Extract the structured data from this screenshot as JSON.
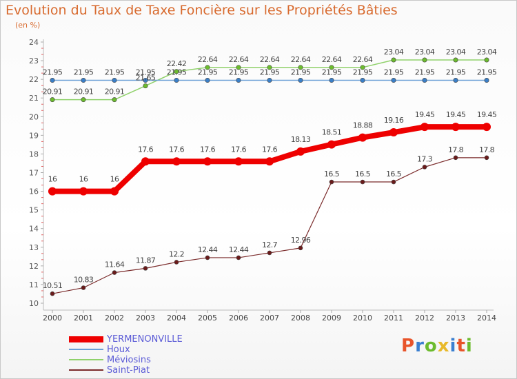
{
  "title": "Evolution du Taux de Taxe Foncière sur les Propriétés Bâties",
  "unit_label": "(en %)",
  "logo_text": "Proxiti",
  "logo_colors": [
    "#e8542a",
    "#3a7fd0",
    "#6cbb2e",
    "#e8b92a",
    "#3a7fd0",
    "#e8542a",
    "#6cbb2e"
  ],
  "chart_data": {
    "type": "line",
    "title": "Evolution du Taux de Taxe Foncière sur les Propriétés Bâties",
    "ylabel": "(en %)",
    "xlabel": "",
    "x": [
      "2000",
      "2001",
      "2002",
      "2003",
      "2004",
      "2005",
      "2006",
      "2007",
      "2008",
      "2009",
      "2010",
      "2011",
      "2012",
      "2013",
      "2014"
    ],
    "ylim": [
      10,
      24
    ],
    "yticks": [
      "10",
      "11",
      "12",
      "13",
      "14",
      "15",
      "16",
      "17",
      "18",
      "19",
      "20",
      "21",
      "22",
      "23",
      "24"
    ],
    "grid": "horizontal",
    "legend_position": "bottom-left",
    "series": [
      {
        "name": "YERMENONVILLE",
        "color": "#ee0000",
        "values": [
          16,
          16,
          16,
          17.6,
          17.6,
          17.6,
          17.6,
          17.6,
          18.13,
          18.51,
          18.88,
          19.16,
          19.45,
          19.45,
          19.45
        ],
        "labels": [
          "16",
          "16",
          "16",
          "17.6",
          "17.6",
          "17.6",
          "17.6",
          "17.6",
          "18.13",
          "18.51",
          "18.88",
          "19.16",
          "19.45",
          "19.45",
          "19.45"
        ]
      },
      {
        "name": "Houx",
        "color": "#6a9fd6",
        "values": [
          21.95,
          21.95,
          21.95,
          21.95,
          21.95,
          21.95,
          21.95,
          21.95,
          21.95,
          21.95,
          21.95,
          21.95,
          21.95,
          21.95,
          21.95
        ],
        "labels": [
          "21.95",
          "21.95",
          "21.95",
          "21.95",
          "21.95",
          "21.95",
          "21.95",
          "21.95",
          "21.95",
          "21.95",
          "21.95",
          "21.95",
          "21.95",
          "21.95",
          "21.95"
        ]
      },
      {
        "name": "Méviosins",
        "color": "#8fd16a",
        "values": [
          20.91,
          20.91,
          20.91,
          21.65,
          22.42,
          22.64,
          22.64,
          22.64,
          22.64,
          22.64,
          22.64,
          23.04,
          23.04,
          23.04,
          23.04
        ],
        "labels": [
          "20.91",
          "20.91",
          "20.91",
          "21.65",
          "22.42",
          "22.64",
          "22.64",
          "22.64",
          "22.64",
          "22.64",
          "22.64",
          "23.04",
          "23.04",
          "23.04",
          "23.04"
        ]
      },
      {
        "name": "Saint-Piat",
        "color": "#7a2a2a",
        "values": [
          10.51,
          10.83,
          11.64,
          11.87,
          12.2,
          12.44,
          12.44,
          12.7,
          12.96,
          16.5,
          16.5,
          16.5,
          17.3,
          17.8,
          17.8
        ],
        "labels": [
          "10.51",
          "10.83",
          "11.64",
          "11.87",
          "12.2",
          "12.44",
          "12.44",
          "12.7",
          "12.96",
          "16.5",
          "16.5",
          "16.5",
          "17.3",
          "17.8",
          "17.8"
        ]
      }
    ]
  }
}
